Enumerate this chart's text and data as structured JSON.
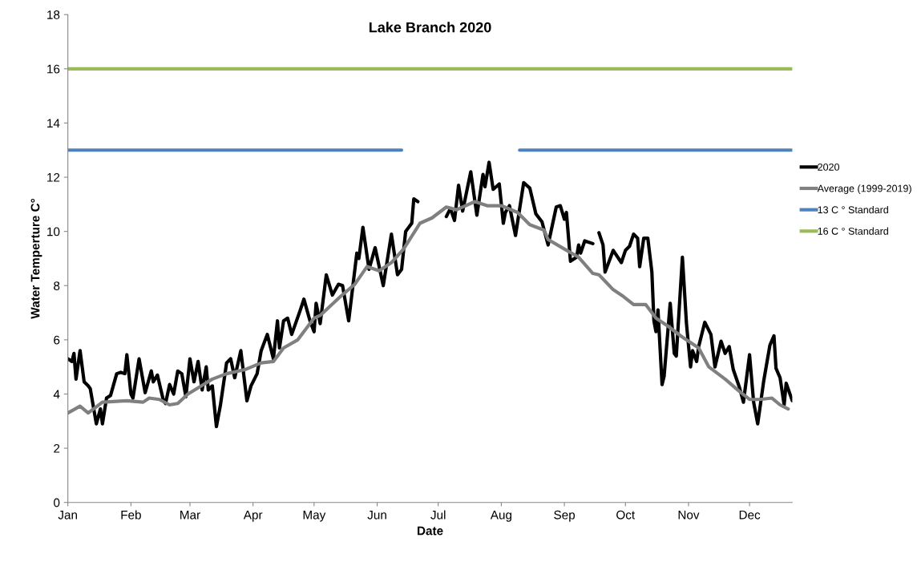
{
  "chart_data": {
    "type": "line",
    "title": "Lake Branch 2020",
    "xlabel": "Date",
    "ylabel": "Water Temperture C°",
    "xlim": [
      "2020-01-01",
      "2020-12-22"
    ],
    "xticks": [
      {
        "value": "2020-01-01",
        "label": "Jan"
      },
      {
        "value": "2020-02-01",
        "label": "Feb"
      },
      {
        "value": "2020-03-01",
        "label": "Mar"
      },
      {
        "value": "2020-04-01",
        "label": "Apr"
      },
      {
        "value": "2020-05-01",
        "label": "May"
      },
      {
        "value": "2020-06-01",
        "label": "Jun"
      },
      {
        "value": "2020-07-01",
        "label": "Jul"
      },
      {
        "value": "2020-08-01",
        "label": "Aug"
      },
      {
        "value": "2020-09-01",
        "label": "Sep"
      },
      {
        "value": "2020-10-01",
        "label": "Oct"
      },
      {
        "value": "2020-11-01",
        "label": "Nov"
      },
      {
        "value": "2020-12-01",
        "label": "Dec"
      }
    ],
    "ylim": [
      0,
      18
    ],
    "yticks": [
      0,
      2,
      4,
      6,
      8,
      10,
      12,
      14,
      16,
      18
    ],
    "grid": false,
    "legend": "right",
    "marker": "none",
    "line_style": "solid",
    "series": [
      {
        "name": "2020",
        "color": "#000000",
        "x": [
          "2020-01-01",
          "2020-01-03",
          "2020-01-04",
          "2020-01-05",
          "2020-01-07",
          "2020-01-09",
          "2020-01-11",
          "2020-01-12",
          "2020-01-15",
          "2020-01-17",
          "2020-01-18",
          "2020-01-20",
          "2020-01-22",
          "2020-01-25",
          "2020-01-27",
          "2020-01-29",
          "2020-01-30",
          "2020-02-01",
          "2020-02-02",
          "2020-02-05",
          "2020-02-08",
          "2020-02-11",
          "2020-02-12",
          "2020-02-14",
          "2020-02-17",
          "2020-02-18",
          "2020-02-20",
          "2020-02-22",
          "2020-02-24",
          "2020-02-26",
          "2020-02-28",
          "2020-03-01",
          "2020-03-03",
          "2020-03-05",
          "2020-03-07",
          "2020-03-09",
          "2020-03-10",
          "2020-03-12",
          "2020-03-14",
          "2020-03-16",
          "2020-03-19",
          "2020-03-21",
          "2020-03-23",
          "2020-03-26",
          "2020-03-29",
          "2020-03-31",
          "2020-04-03",
          "2020-04-05",
          "2020-04-08",
          "2020-04-11",
          "2020-04-13",
          "2020-04-14",
          "2020-04-16",
          "2020-04-18",
          "2020-04-20",
          "2020-04-24",
          "2020-04-26",
          "2020-04-29",
          "2020-05-01",
          "2020-05-02",
          "2020-05-04",
          "2020-05-07",
          "2020-05-10",
          "2020-05-13",
          "2020-05-15",
          "2020-05-18",
          "2020-05-22",
          "2020-05-23",
          "2020-05-25",
          "2020-05-28",
          "2020-05-31",
          "2020-06-04",
          "2020-06-08",
          "2020-06-11",
          "2020-06-13",
          "2020-06-15",
          "2020-06-18",
          "2020-06-19",
          "2020-06-21",
          "2020-06-27",
          "2020-07-05",
          "2020-07-07",
          "2020-07-09",
          "2020-07-11",
          "2020-07-13",
          "2020-07-17",
          "2020-07-20",
          "2020-07-23",
          "2020-07-24",
          "2020-07-26",
          "2020-07-28",
          "2020-07-31",
          "2020-08-02",
          "2020-08-03",
          "2020-08-05",
          "2020-08-08",
          "2020-08-12",
          "2020-08-15",
          "2020-08-18",
          "2020-08-21",
          "2020-08-24",
          "2020-08-28",
          "2020-08-30",
          "2020-09-01",
          "2020-09-02",
          "2020-09-04",
          "2020-09-07",
          "2020-09-08",
          "2020-09-09",
          "2020-09-11",
          "2020-09-15",
          "2020-09-16",
          "2020-09-18",
          "2020-09-20",
          "2020-09-21",
          "2020-09-25",
          "2020-09-29",
          "2020-10-01",
          "2020-10-03",
          "2020-10-05",
          "2020-10-07",
          "2020-10-08",
          "2020-10-10",
          "2020-10-12",
          "2020-10-14",
          "2020-10-15",
          "2020-10-16",
          "2020-10-17",
          "2020-10-19",
          "2020-10-20",
          "2020-10-23",
          "2020-10-25",
          "2020-10-26",
          "2020-10-29",
          "2020-10-31",
          "2020-11-02",
          "2020-11-03",
          "2020-11-05",
          "2020-11-06",
          "2020-11-09",
          "2020-11-12",
          "2020-11-14",
          "2020-11-17",
          "2020-11-19",
          "2020-11-21",
          "2020-11-23",
          "2020-11-26",
          "2020-11-28",
          "2020-12-01",
          "2020-12-03",
          "2020-12-05",
          "2020-12-08",
          "2020-12-11",
          "2020-12-13",
          "2020-12-14",
          "2020-12-16",
          "2020-12-18",
          "2020-12-19",
          "2020-12-22"
        ],
        "values": [
          5.3,
          5.2,
          5.5,
          4.55,
          5.6,
          4.45,
          4.3,
          4.2,
          2.9,
          3.45,
          2.9,
          3.85,
          3.95,
          4.75,
          4.8,
          4.75,
          5.45,
          4.0,
          3.85,
          5.3,
          4.05,
          4.85,
          4.45,
          4.7,
          3.75,
          3.65,
          4.35,
          4.0,
          4.85,
          4.75,
          3.9,
          5.3,
          4.45,
          5.2,
          4.15,
          5.0,
          4.15,
          4.3,
          2.8,
          3.6,
          5.15,
          5.3,
          4.6,
          5.6,
          3.75,
          4.3,
          4.75,
          5.6,
          6.2,
          5.3,
          6.7,
          5.7,
          6.7,
          6.8,
          6.2,
          7.05,
          7.5,
          6.7,
          6.3,
          7.35,
          6.6,
          8.4,
          7.65,
          8.05,
          8.0,
          6.7,
          9.2,
          9.0,
          10.15,
          8.6,
          9.4,
          8.0,
          9.9,
          8.4,
          8.6,
          10.0,
          10.3,
          11.2,
          11.1,
          null,
          10.55,
          10.85,
          10.4,
          11.7,
          10.75,
          12.2,
          10.6,
          12.1,
          11.65,
          12.55,
          11.55,
          11.75,
          10.3,
          10.7,
          10.95,
          9.85,
          11.8,
          11.6,
          10.65,
          10.35,
          9.5,
          10.9,
          10.95,
          10.45,
          10.7,
          8.9,
          9.05,
          9.5,
          9.2,
          9.65,
          9.55,
          null,
          9.95,
          9.5,
          8.5,
          9.3,
          8.85,
          9.3,
          9.45,
          9.9,
          9.75,
          8.7,
          9.75,
          9.75,
          8.5,
          6.7,
          6.3,
          7.1,
          4.35,
          4.65,
          7.35,
          5.5,
          5.4,
          9.05,
          6.6,
          5.0,
          5.6,
          5.2,
          5.75,
          6.65,
          6.2,
          5.0,
          5.95,
          5.5,
          5.75,
          4.9,
          4.25,
          3.7,
          5.45,
          3.7,
          2.9,
          4.5,
          5.8,
          6.15,
          4.95,
          4.6,
          3.6,
          4.4,
          3.75
        ]
      },
      {
        "name": "Average (1999-2019)",
        "color": "#808080",
        "x": [
          "2020-01-01",
          "2020-01-07",
          "2020-01-11",
          "2020-01-18",
          "2020-01-30",
          "2020-02-07",
          "2020-02-10",
          "2020-02-15",
          "2020-02-20",
          "2020-02-24",
          "2020-02-29",
          "2020-03-12",
          "2020-03-19",
          "2020-03-28",
          "2020-04-05",
          "2020-04-11",
          "2020-04-16",
          "2020-04-23",
          "2020-05-01",
          "2020-05-04",
          "2020-05-14",
          "2020-05-21",
          "2020-05-27",
          "2020-06-02",
          "2020-06-08",
          "2020-06-14",
          "2020-06-22",
          "2020-06-28",
          "2020-07-05",
          "2020-07-10",
          "2020-07-19",
          "2020-07-25",
          "2020-08-01",
          "2020-08-09",
          "2020-08-15",
          "2020-08-22",
          "2020-08-24",
          "2020-09-01",
          "2020-09-08",
          "2020-09-15",
          "2020-09-18",
          "2020-09-25",
          "2020-09-30",
          "2020-10-05",
          "2020-10-11",
          "2020-10-16",
          "2020-10-22",
          "2020-10-29",
          "2020-11-06",
          "2020-11-11",
          "2020-11-19",
          "2020-11-26",
          "2020-12-01",
          "2020-12-06",
          "2020-12-12",
          "2020-12-16",
          "2020-12-20"
        ],
        "values": [
          3.3,
          3.55,
          3.3,
          3.7,
          3.75,
          3.7,
          3.85,
          3.8,
          3.6,
          3.65,
          4.0,
          4.55,
          4.75,
          4.9,
          5.15,
          5.2,
          5.7,
          6.0,
          6.8,
          6.9,
          7.6,
          8.05,
          8.7,
          8.55,
          8.85,
          9.35,
          10.3,
          10.5,
          10.9,
          10.8,
          11.1,
          10.95,
          10.95,
          10.7,
          10.25,
          10.05,
          9.7,
          9.35,
          9.05,
          8.45,
          8.4,
          7.85,
          7.6,
          7.3,
          7.3,
          6.8,
          6.5,
          6.1,
          5.7,
          5.0,
          4.55,
          4.1,
          3.8,
          3.8,
          3.85,
          3.6,
          3.45
        ]
      },
      {
        "name": "13 C ° Standard",
        "color": "#4f81bd",
        "x": [
          "2020-01-01",
          "2020-06-13",
          "2020-07-12",
          "2020-08-10",
          "2020-12-22"
        ],
        "values": [
          13,
          13,
          null,
          13,
          13
        ]
      },
      {
        "name": "16 C ° Standard",
        "color": "#9bbb59",
        "x": [
          "2020-01-01",
          "2020-12-22"
        ],
        "values": [
          16,
          16
        ]
      }
    ]
  }
}
